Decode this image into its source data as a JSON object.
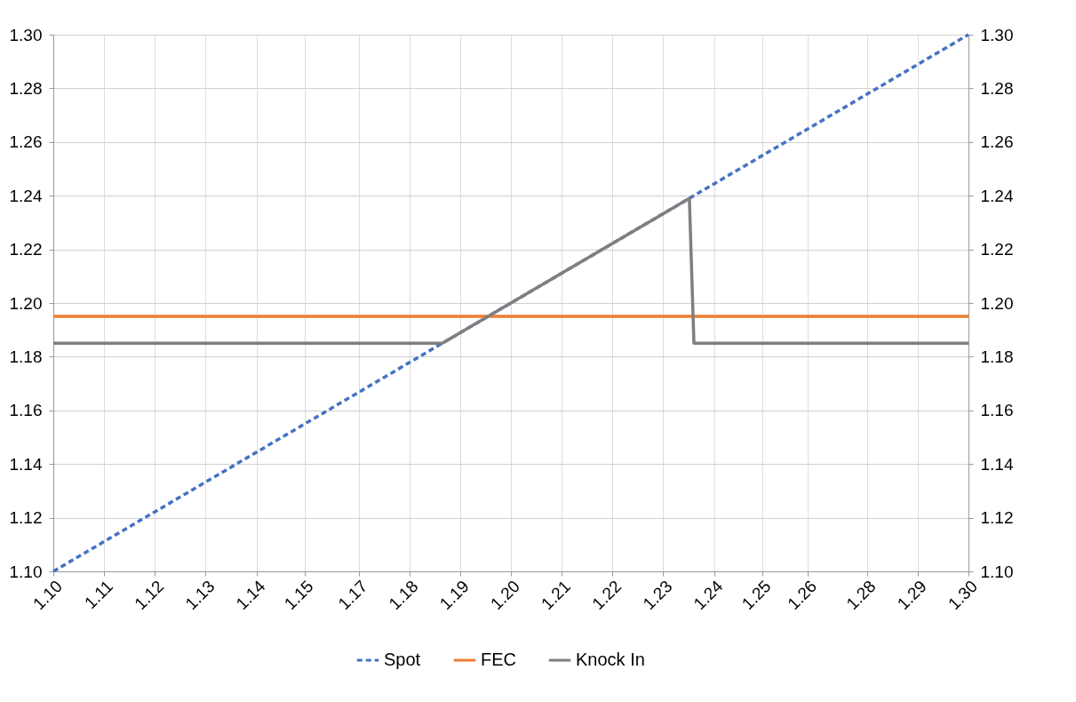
{
  "chart_data": {
    "type": "line",
    "xlim": [
      1.1,
      1.3
    ],
    "xticks": [
      {
        "value": 1.1,
        "label": "1.10"
      },
      {
        "value": 1.1111,
        "label": "1.11"
      },
      {
        "value": 1.1222,
        "label": "1.12"
      },
      {
        "value": 1.1333,
        "label": "1.13"
      },
      {
        "value": 1.1444,
        "label": "1.14"
      },
      {
        "value": 1.1549,
        "label": "1.15"
      },
      {
        "value": 1.1667,
        "label": "1.17"
      },
      {
        "value": 1.1778,
        "label": "1.18"
      },
      {
        "value": 1.1889,
        "label": "1.19"
      },
      {
        "value": 1.2,
        "label": "1.20"
      },
      {
        "value": 1.2111,
        "label": "1.21"
      },
      {
        "value": 1.2222,
        "label": "1.22"
      },
      {
        "value": 1.2333,
        "label": "1.23"
      },
      {
        "value": 1.2444,
        "label": "1.24"
      },
      {
        "value": 1.2549,
        "label": "1.25"
      },
      {
        "value": 1.2649,
        "label": "1.26"
      },
      {
        "value": 1.2778,
        "label": "1.28"
      },
      {
        "value": 1.2889,
        "label": "1.29"
      },
      {
        "value": 1.3,
        "label": "1.30"
      }
    ],
    "ylim": [
      1.1,
      1.3
    ],
    "yticks": [
      {
        "value": 1.1,
        "label": "1.10"
      },
      {
        "value": 1.12,
        "label": "1.12"
      },
      {
        "value": 1.14,
        "label": "1.14"
      },
      {
        "value": 1.16,
        "label": "1.16"
      },
      {
        "value": 1.18,
        "label": "1.18"
      },
      {
        "value": 1.2,
        "label": "1.20"
      },
      {
        "value": 1.22,
        "label": "1.22"
      },
      {
        "value": 1.24,
        "label": "1.24"
      },
      {
        "value": 1.26,
        "label": "1.26"
      },
      {
        "value": 1.28,
        "label": "1.28"
      },
      {
        "value": 1.3,
        "label": "1.30"
      }
    ],
    "y2lim": [
      1.1,
      1.3
    ],
    "y2ticks": [
      {
        "value": 1.1,
        "label": "1.10"
      },
      {
        "value": 1.12,
        "label": "1.12"
      },
      {
        "value": 1.14,
        "label": "1.14"
      },
      {
        "value": 1.16,
        "label": "1.16"
      },
      {
        "value": 1.18,
        "label": "1.18"
      },
      {
        "value": 1.2,
        "label": "1.20"
      },
      {
        "value": 1.22,
        "label": "1.22"
      },
      {
        "value": 1.24,
        "label": "1.24"
      },
      {
        "value": 1.26,
        "label": "1.26"
      },
      {
        "value": 1.28,
        "label": "1.28"
      },
      {
        "value": 1.3,
        "label": "1.30"
      }
    ],
    "grid": true,
    "legend": "bottom",
    "marker": "none",
    "series": [
      {
        "name": "Spot",
        "color": "#4472c4",
        "line_style": "dashed",
        "x": [
          1.1,
          1.3
        ],
        "values": [
          1.1,
          1.3
        ]
      },
      {
        "name": "FEC",
        "color": "#ed7d31",
        "line_style": "solid",
        "x": [
          1.1,
          1.3
        ],
        "values": [
          1.195,
          1.195
        ]
      },
      {
        "name": "Knock In",
        "color": "#7f7f7f",
        "line_style": "solid",
        "x": [
          1.1,
          1.185,
          1.239,
          1.24,
          1.3
        ],
        "values": [
          1.185,
          1.185,
          1.239,
          1.185,
          1.185
        ]
      }
    ]
  }
}
